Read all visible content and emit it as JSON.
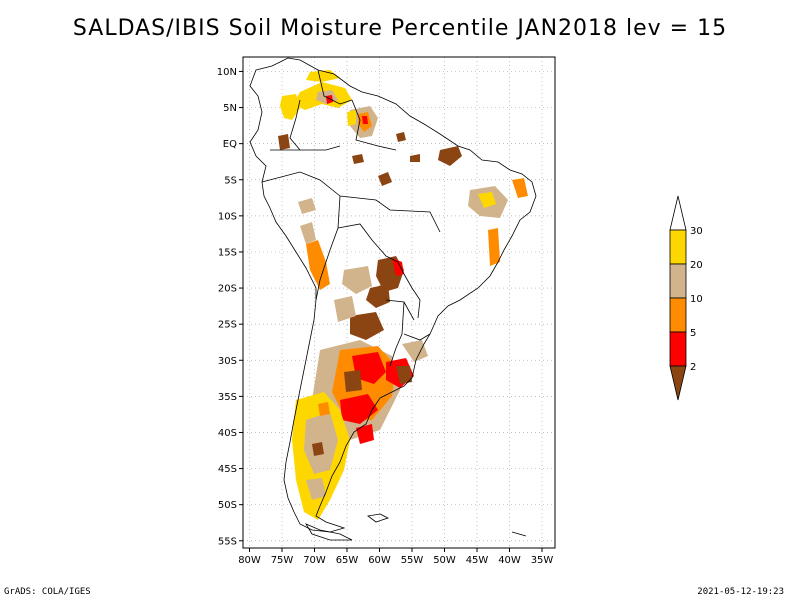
{
  "title": "SALDAS/IBIS Soil Moisture Percentile JAN2018 lev = 15",
  "footer": {
    "left": "GrADS: COLA/IGES",
    "right": "2021-05-12-19:23"
  },
  "map": {
    "lon_range": [
      -81,
      -33
    ],
    "lat_range": [
      -56,
      12
    ],
    "lat_ticks": [
      {
        "value": 10,
        "label": "10N"
      },
      {
        "value": 5,
        "label": "5N"
      },
      {
        "value": 0,
        "label": "EQ"
      },
      {
        "value": -5,
        "label": "5S"
      },
      {
        "value": -10,
        "label": "10S"
      },
      {
        "value": -15,
        "label": "15S"
      },
      {
        "value": -20,
        "label": "20S"
      },
      {
        "value": -25,
        "label": "25S"
      },
      {
        "value": -30,
        "label": "30S"
      },
      {
        "value": -35,
        "label": "35S"
      },
      {
        "value": -40,
        "label": "40S"
      },
      {
        "value": -45,
        "label": "45S"
      },
      {
        "value": -50,
        "label": "50S"
      },
      {
        "value": -55,
        "label": "55S"
      }
    ],
    "lon_ticks": [
      {
        "value": -80,
        "label": "80W"
      },
      {
        "value": -75,
        "label": "75W"
      },
      {
        "value": -70,
        "label": "70W"
      },
      {
        "value": -65,
        "label": "65W"
      },
      {
        "value": -60,
        "label": "60W"
      },
      {
        "value": -55,
        "label": "55W"
      },
      {
        "value": -50,
        "label": "50W"
      },
      {
        "value": -45,
        "label": "45W"
      },
      {
        "value": -40,
        "label": "40W"
      },
      {
        "value": -35,
        "label": "35W"
      }
    ]
  },
  "legend": {
    "bins": [
      {
        "label": "30",
        "color": "#ffffff"
      },
      {
        "label": "20",
        "color": "#ffd700"
      },
      {
        "label": "10",
        "color": "#d2b48c"
      },
      {
        "label": "5",
        "color": "#ff8c00"
      },
      {
        "label": "2",
        "color": "#ff0000"
      },
      {
        "label": "",
        "color": "#8b4513"
      }
    ]
  },
  "colors": {
    "lt2": "#8b4513",
    "2to5": "#ff0000",
    "5to10": "#ff8c00",
    "10to20": "#d2b48c",
    "20to30": "#ffd700",
    "coast": "#000000"
  }
}
